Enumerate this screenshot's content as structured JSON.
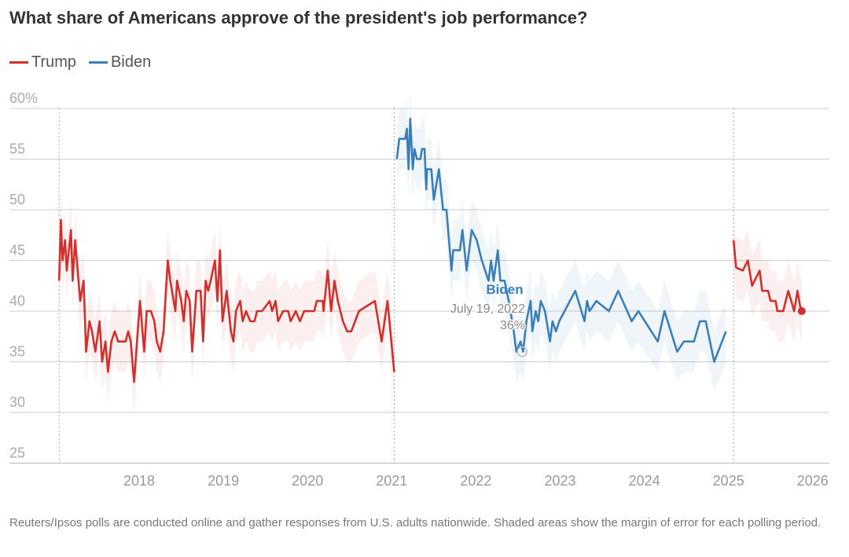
{
  "chart_data": {
    "type": "line",
    "title": "What share of Americans approve of the president's job performance?",
    "ylim": [
      25,
      60
    ],
    "yticks": [
      "60%",
      "55",
      "50",
      "45",
      "40",
      "35",
      "30",
      "25"
    ],
    "ytick_values": [
      60,
      55,
      50,
      45,
      40,
      35,
      30,
      25
    ],
    "xticks": [
      "2018",
      "2019",
      "2020",
      "2021",
      "2022",
      "2023",
      "2024",
      "2025",
      "2026"
    ],
    "xtick_values": [
      2018,
      2019,
      2020,
      2021,
      2022,
      2023,
      2024,
      2025,
      2026
    ],
    "grid": "horizontal",
    "legend": "top-left",
    "margin_of_error": 3,
    "term_starts": [
      2017.05,
      2021.03,
      2025.06
    ],
    "series": [
      {
        "name": "Trump",
        "color": "#d0312d",
        "segments": [
          [
            [
              2017.05,
              43
            ],
            [
              2017.07,
              49
            ],
            [
              2017.09,
              45
            ],
            [
              2017.12,
              47
            ],
            [
              2017.14,
              44
            ],
            [
              2017.19,
              48
            ],
            [
              2017.21,
              43
            ],
            [
              2017.24,
              47
            ],
            [
              2017.3,
              41
            ],
            [
              2017.34,
              43
            ],
            [
              2017.37,
              36
            ],
            [
              2017.41,
              39
            ],
            [
              2017.44,
              38
            ],
            [
              2017.48,
              36
            ],
            [
              2017.53,
              39
            ],
            [
              2017.56,
              35
            ],
            [
              2017.6,
              37
            ],
            [
              2017.63,
              34
            ],
            [
              2017.67,
              37
            ],
            [
              2017.71,
              38
            ],
            [
              2017.75,
              37
            ],
            [
              2017.84,
              37
            ],
            [
              2017.87,
              38
            ],
            [
              2017.9,
              37
            ],
            [
              2017.94,
              33
            ],
            [
              2018.01,
              41
            ],
            [
              2018.06,
              36
            ],
            [
              2018.09,
              40
            ],
            [
              2018.14,
              40
            ],
            [
              2018.18,
              39
            ],
            [
              2018.21,
              37
            ],
            [
              2018.25,
              36
            ],
            [
              2018.29,
              38
            ],
            [
              2018.34,
              45
            ],
            [
              2018.37,
              43
            ],
            [
              2018.43,
              40
            ],
            [
              2018.45,
              43
            ],
            [
              2018.5,
              41
            ],
            [
              2018.53,
              39
            ],
            [
              2018.56,
              42
            ],
            [
              2018.6,
              41
            ],
            [
              2018.63,
              36
            ],
            [
              2018.68,
              42
            ],
            [
              2018.73,
              42
            ],
            [
              2018.76,
              37
            ],
            [
              2018.79,
              43
            ],
            [
              2018.82,
              42
            ],
            [
              2018.85,
              43
            ],
            [
              2018.9,
              45
            ],
            [
              2018.93,
              41
            ],
            [
              2018.96,
              46
            ],
            [
              2018.99,
              39
            ],
            [
              2019.04,
              42
            ],
            [
              2019.09,
              38
            ],
            [
              2019.12,
              37
            ],
            [
              2019.15,
              40
            ],
            [
              2019.2,
              41
            ],
            [
              2019.23,
              39
            ],
            [
              2019.27,
              40
            ],
            [
              2019.32,
              39
            ],
            [
              2019.37,
              39
            ],
            [
              2019.4,
              40
            ],
            [
              2019.46,
              40
            ],
            [
              2019.55,
              41
            ],
            [
              2019.58,
              40
            ],
            [
              2019.62,
              41
            ],
            [
              2019.65,
              39
            ],
            [
              2019.71,
              40
            ],
            [
              2019.77,
              40
            ],
            [
              2019.8,
              39
            ],
            [
              2019.86,
              40
            ],
            [
              2019.91,
              39
            ],
            [
              2019.96,
              40
            ],
            [
              2020.02,
              40
            ],
            [
              2020.08,
              40
            ],
            [
              2020.11,
              41
            ],
            [
              2020.18,
              41
            ],
            [
              2020.19,
              40
            ],
            [
              2020.24,
              44
            ],
            [
              2020.28,
              40
            ],
            [
              2020.32,
              43
            ],
            [
              2020.36,
              41
            ],
            [
              2020.42,
              39
            ],
            [
              2020.47,
              38
            ],
            [
              2020.52,
              38
            ],
            [
              2020.61,
              40
            ],
            [
              2020.8,
              41
            ],
            [
              2020.88,
              37
            ],
            [
              2020.95,
              41
            ],
            [
              2021.03,
              34
            ]
          ],
          [
            [
              2025.06,
              47
            ],
            [
              2025.09,
              44.3
            ],
            [
              2025.17,
              44
            ],
            [
              2025.23,
              45
            ],
            [
              2025.28,
              42.5
            ],
            [
              2025.37,
              44
            ],
            [
              2025.4,
              42
            ],
            [
              2025.47,
              42
            ],
            [
              2025.5,
              41
            ],
            [
              2025.56,
              41
            ],
            [
              2025.58,
              40
            ],
            [
              2025.65,
              40
            ],
            [
              2025.71,
              42
            ],
            [
              2025.78,
              40
            ],
            [
              2025.82,
              42
            ],
            [
              2025.85,
              40.5
            ],
            [
              2025.87,
              40
            ]
          ]
        ],
        "last_point": [
          2025.87,
          40
        ]
      },
      {
        "name": "Biden",
        "color": "#3b7fb8",
        "segments": [
          [
            [
              2021.06,
              55
            ],
            [
              2021.09,
              57
            ],
            [
              2021.16,
              57
            ],
            [
              2021.18,
              58
            ],
            [
              2021.2,
              54
            ],
            [
              2021.22,
              59
            ],
            [
              2021.25,
              54
            ],
            [
              2021.27,
              56
            ],
            [
              2021.3,
              55
            ],
            [
              2021.34,
              55
            ],
            [
              2021.36,
              56
            ],
            [
              2021.39,
              56
            ],
            [
              2021.41,
              52
            ],
            [
              2021.42,
              54
            ],
            [
              2021.47,
              54
            ],
            [
              2021.5,
              51
            ],
            [
              2021.56,
              54
            ],
            [
              2021.61,
              50
            ],
            [
              2021.65,
              50
            ],
            [
              2021.69,
              46
            ],
            [
              2021.71,
              44
            ],
            [
              2021.73,
              46
            ],
            [
              2021.81,
              46
            ],
            [
              2021.84,
              48
            ],
            [
              2021.89,
              44
            ],
            [
              2021.95,
              48
            ],
            [
              2022.01,
              47
            ],
            [
              2022.07,
              45
            ],
            [
              2022.15,
              43
            ],
            [
              2022.18,
              45
            ],
            [
              2022.21,
              43
            ],
            [
              2022.26,
              46
            ],
            [
              2022.29,
              43
            ],
            [
              2022.34,
              43
            ],
            [
              2022.39,
              41
            ],
            [
              2022.45,
              38
            ],
            [
              2022.48,
              36
            ],
            [
              2022.53,
              37
            ],
            [
              2022.56,
              36
            ],
            [
              2022.6,
              39
            ],
            [
              2022.65,
              41
            ],
            [
              2022.67,
              38
            ],
            [
              2022.71,
              40
            ],
            [
              2022.74,
              39
            ],
            [
              2022.77,
              41
            ],
            [
              2022.82,
              40
            ],
            [
              2022.88,
              37
            ],
            [
              2022.91,
              39
            ],
            [
              2022.95,
              38
            ],
            [
              2022.99,
              39
            ],
            [
              2023.18,
              42
            ],
            [
              2023.29,
              39
            ],
            [
              2023.32,
              41
            ],
            [
              2023.35,
              40
            ],
            [
              2023.43,
              41
            ],
            [
              2023.58,
              40
            ],
            [
              2023.69,
              42
            ],
            [
              2023.85,
              39
            ],
            [
              2023.93,
              40
            ],
            [
              2024.16,
              37
            ],
            [
              2024.24,
              40
            ],
            [
              2024.39,
              36
            ],
            [
              2024.47,
              37
            ],
            [
              2024.59,
              37
            ],
            [
              2024.66,
              39
            ],
            [
              2024.73,
              39
            ],
            [
              2024.83,
              35
            ],
            [
              2024.97,
              38
            ]
          ]
        ]
      }
    ],
    "annotation": {
      "name": "Biden",
      "date": "July 19, 2022",
      "value_label": "36%",
      "point": [
        2022.55,
        36
      ]
    }
  },
  "legend": {
    "trump": "Trump",
    "biden": "Biden"
  },
  "footnote": "Reuters/Ipsos polls are conducted online and gather responses from U.S. adults nationwide. Shaded areas show the margin of error for each polling period."
}
